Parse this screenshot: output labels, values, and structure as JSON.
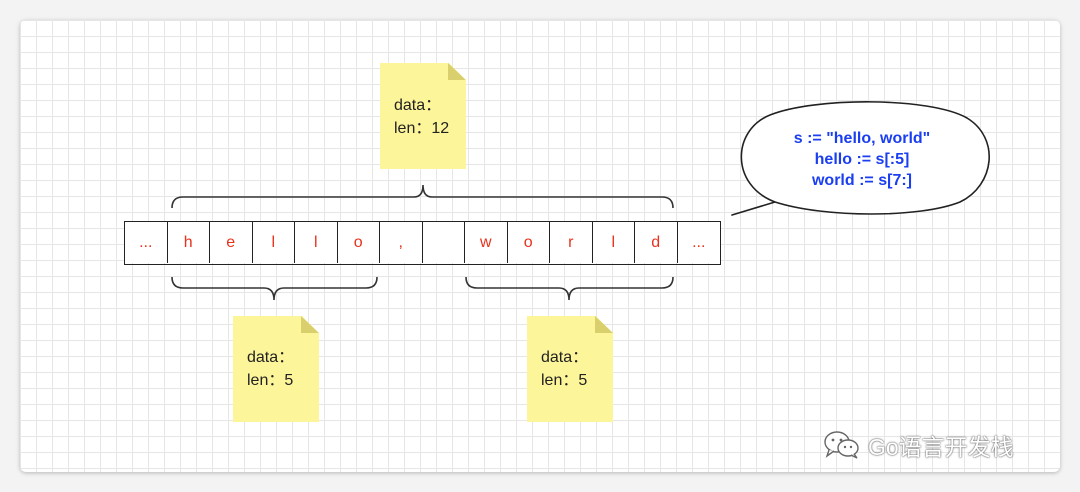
{
  "cells": [
    "...",
    "h",
    "e",
    "l",
    "l",
    "o",
    ",",
    "",
    "w",
    "o",
    "r",
    "l",
    "d",
    "..."
  ],
  "notes": {
    "top": {
      "data_label": "data：",
      "len_label": "len：12"
    },
    "hello": {
      "data_label": "data：",
      "len_label": "len：5"
    },
    "world": {
      "data_label": "data：",
      "len_label": "len：5"
    }
  },
  "bubble": {
    "line1": "s := \"hello, world\"",
    "line2": "hello := s[:5]",
    "line3": "world := s[7:]"
  },
  "watermark": "Go语言开发栈",
  "colors": {
    "char": "#e8321c",
    "code": "#1a3ef0",
    "note": "#fdf59a"
  }
}
